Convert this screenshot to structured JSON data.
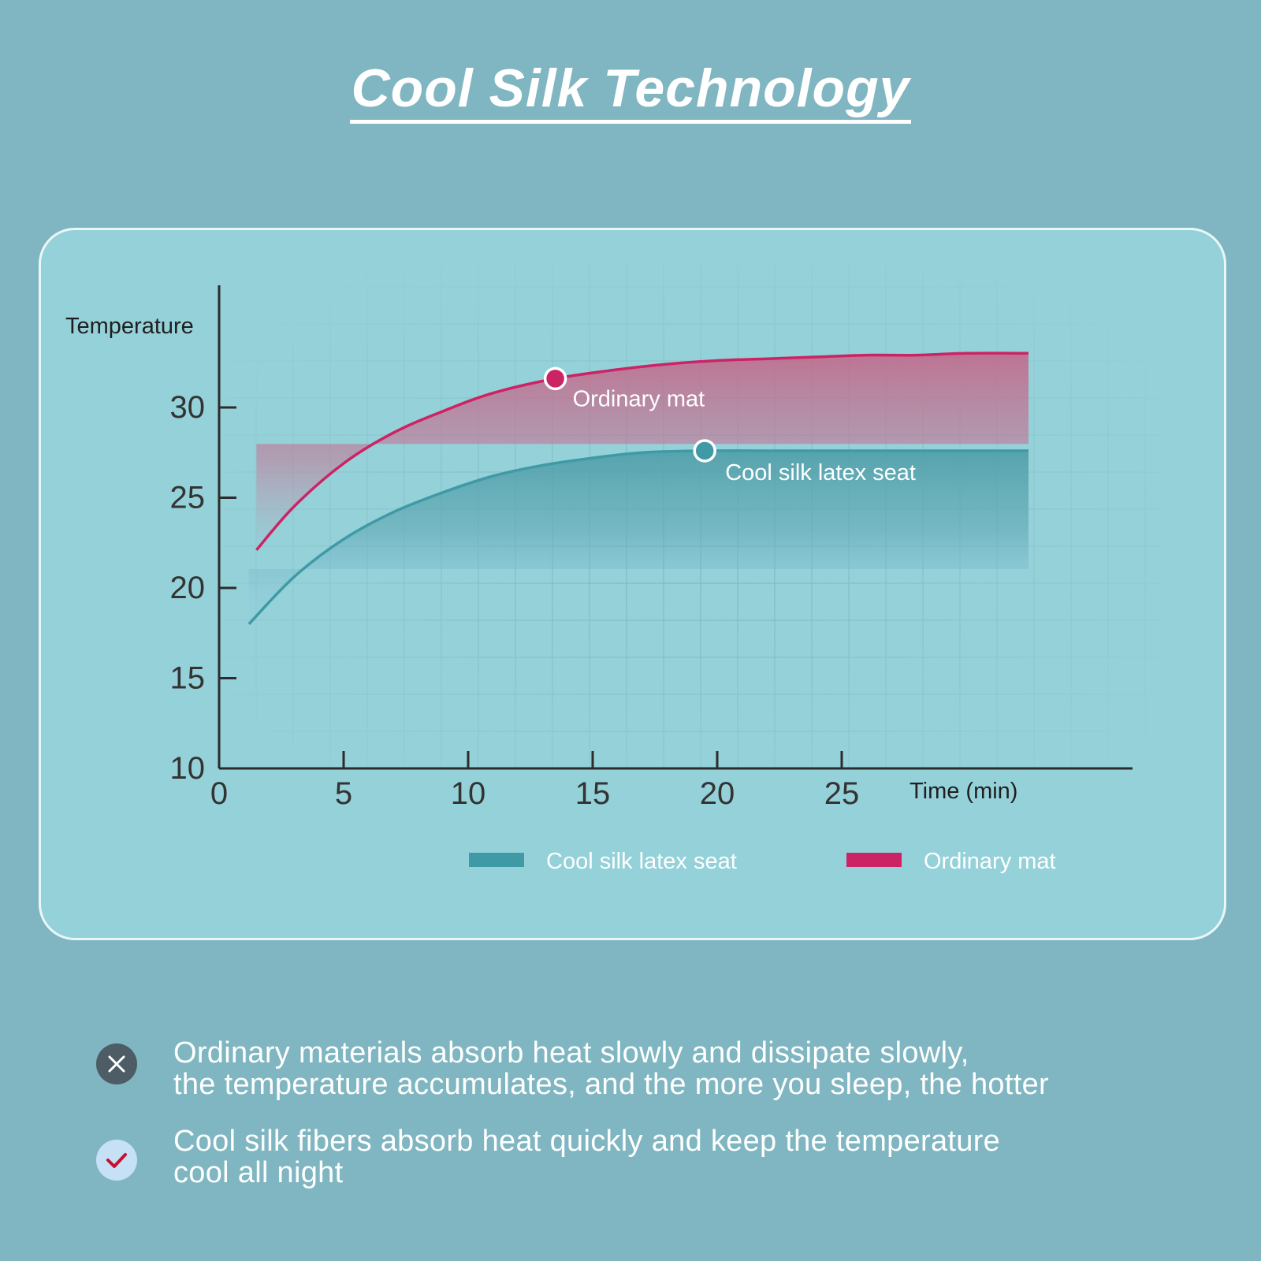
{
  "title": "Cool Silk Technology",
  "chart_data": {
    "type": "line",
    "title": "",
    "xlabel": "Time (min)",
    "ylabel": "Temperature",
    "x_ticks": [
      0,
      5,
      10,
      15,
      20,
      25
    ],
    "y_ticks": [
      10,
      15,
      20,
      25,
      30
    ],
    "xlim": [
      0,
      33
    ],
    "ylim": [
      10,
      34
    ],
    "grid": true,
    "legend_position": "bottom",
    "series": [
      {
        "name": "Ordinary mat",
        "color": "#cc2365",
        "x": [
          1.5,
          3,
          5,
          7,
          9,
          11,
          13.5,
          16,
          18,
          20,
          22,
          24,
          26,
          28,
          30,
          32.5
        ],
        "y": [
          22.1,
          24.5,
          26.9,
          28.6,
          29.8,
          30.8,
          31.6,
          32.1,
          32.4,
          32.6,
          32.7,
          32.8,
          32.9,
          32.9,
          33.0,
          33.0
        ]
      },
      {
        "name": "Cool silk latex seat",
        "color": "#3f9aa5",
        "x": [
          1.2,
          3,
          5,
          7,
          9,
          11,
          13,
          15,
          17,
          19.5,
          22,
          25,
          28,
          30,
          32.5
        ],
        "y": [
          18.0,
          20.6,
          22.7,
          24.2,
          25.3,
          26.2,
          26.8,
          27.2,
          27.5,
          27.6,
          27.6,
          27.6,
          27.6,
          27.6,
          27.6
        ]
      }
    ],
    "annotations": [
      {
        "label": "Ordinary mat",
        "x": 13.5,
        "y": 31.6,
        "series": 0
      },
      {
        "label": "Cool silk latex seat",
        "x": 19.5,
        "y": 27.6,
        "series": 1
      }
    ],
    "legend": [
      {
        "label": "Cool silk latex seat",
        "color": "#3f9aa5"
      },
      {
        "label": "Ordinary mat",
        "color": "#cc2365"
      }
    ]
  },
  "features": [
    {
      "icon": "close-icon",
      "lines": [
        "Ordinary materials absorb heat slowly and dissipate slowly,",
        "the temperature accumulates, and the more you sleep, the hotter"
      ]
    },
    {
      "icon": "checkmark-icon",
      "lines": [
        "Cool silk fibers absorb heat quickly and keep the temperature",
        "cool all night"
      ]
    }
  ]
}
